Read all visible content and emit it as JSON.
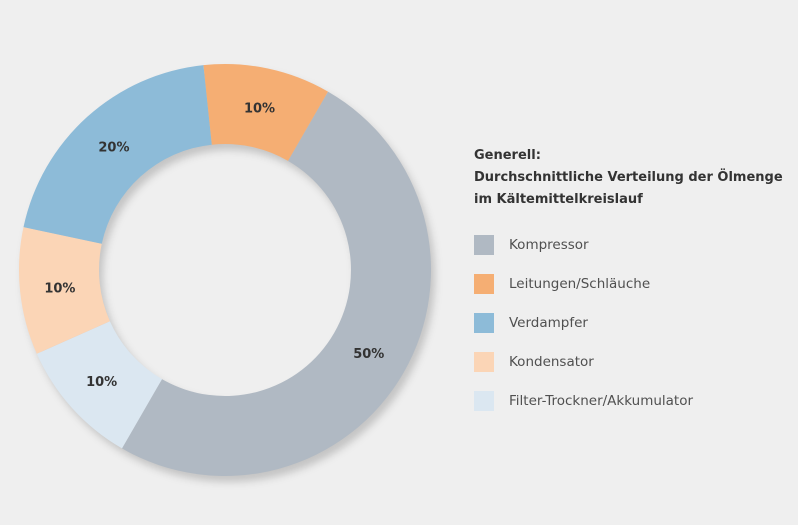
{
  "chart_data": {
    "type": "pie",
    "title": "Generell:",
    "subtitle_lines": [
      "Durchschnittliche Verteilung der Ölmenge",
      "im Kältemittelkreislauf"
    ],
    "categories": [
      "Kompressor",
      "Leitungen/Schläuche",
      "Verdampfer",
      "Kondensator",
      "Filter-Trockner/Akkumulator"
    ],
    "values": [
      50,
      10,
      20,
      10,
      10
    ],
    "value_labels": [
      "50%",
      "10%",
      "20%",
      "10%",
      "10%"
    ],
    "colors": [
      "#b0b9c3",
      "#f5ae73",
      "#8dbbd8",
      "#fbd5b6",
      "#dbe7f1"
    ],
    "legend_position": "right",
    "donut": true
  }
}
